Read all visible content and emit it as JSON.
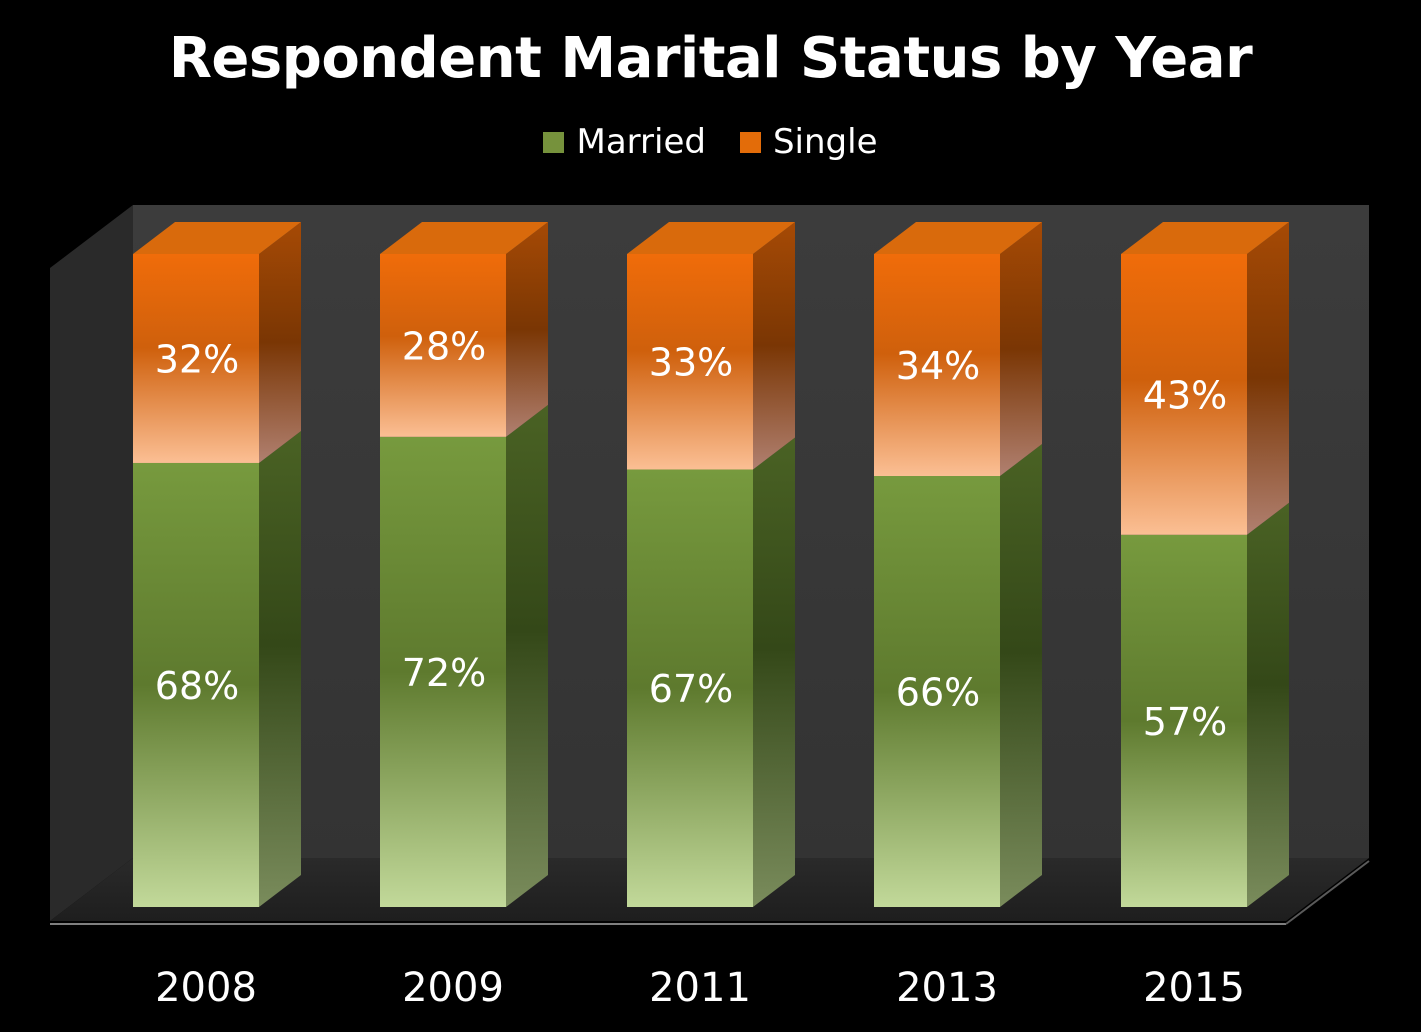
{
  "chart_data": {
    "type": "bar",
    "stacked": true,
    "percent_stacked": true,
    "three_d": true,
    "title": "Respondent Marital Status by Year",
    "xlabel": "",
    "ylabel": "",
    "categories": [
      "2008",
      "2009",
      "2011",
      "2013",
      "2015"
    ],
    "series": [
      {
        "name": "Married",
        "values": [
          68,
          72,
          67,
          66,
          57
        ],
        "labels": [
          "68%",
          "72%",
          "67%",
          "66%",
          "57%"
        ],
        "color": "#76923c"
      },
      {
        "name": "Single",
        "values": [
          32,
          28,
          33,
          34,
          43
        ],
        "labels": [
          "32%",
          "28%",
          "33%",
          "34%",
          "43%"
        ],
        "color": "#e36c09"
      }
    ],
    "ylim": [
      0,
      100
    ],
    "legend_position": "top",
    "grid": false,
    "background_color": "#000000",
    "wall_color": "#3a3a3a",
    "floor_color": "#2a2a2a"
  }
}
